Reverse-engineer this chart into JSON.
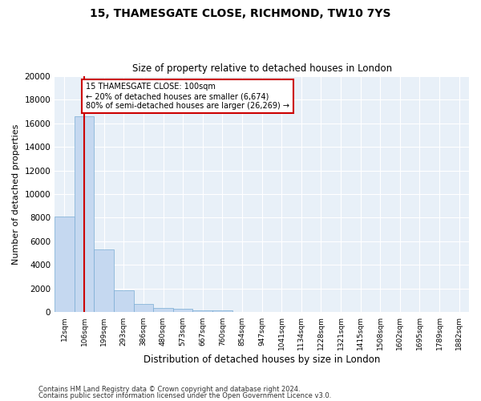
{
  "title1": "15, THAMESGATE CLOSE, RICHMOND, TW10 7YS",
  "title2": "Size of property relative to detached houses in London",
  "xlabel": "Distribution of detached houses by size in London",
  "ylabel": "Number of detached properties",
  "bar_color": "#c5d8f0",
  "bar_edge_color": "#7aadd4",
  "background_color": "#e8f0f8",
  "grid_color": "#ffffff",
  "categories": [
    "12sqm",
    "106sqm",
    "199sqm",
    "293sqm",
    "386sqm",
    "480sqm",
    "573sqm",
    "667sqm",
    "760sqm",
    "854sqm",
    "947sqm",
    "1041sqm",
    "1134sqm",
    "1228sqm",
    "1321sqm",
    "1415sqm",
    "1508sqm",
    "1602sqm",
    "1695sqm",
    "1789sqm",
    "1882sqm"
  ],
  "values": [
    8100,
    16600,
    5300,
    1850,
    700,
    350,
    270,
    200,
    180,
    50,
    0,
    0,
    0,
    0,
    0,
    0,
    0,
    0,
    0,
    0,
    0
  ],
  "ylim": [
    0,
    20000
  ],
  "yticks": [
    0,
    2000,
    4000,
    6000,
    8000,
    10000,
    12000,
    14000,
    16000,
    18000,
    20000
  ],
  "annotation_text": "15 THAMESGATE CLOSE: 100sqm\n← 20% of detached houses are smaller (6,674)\n80% of semi-detached houses are larger (26,269) →",
  "vline_x": 1,
  "annotation_box_color": "#ffffff",
  "annotation_box_edge_color": "#cc0000",
  "vline_color": "#cc0000",
  "footer1": "Contains HM Land Registry data © Crown copyright and database right 2024.",
  "footer2": "Contains public sector information licensed under the Open Government Licence v3.0."
}
